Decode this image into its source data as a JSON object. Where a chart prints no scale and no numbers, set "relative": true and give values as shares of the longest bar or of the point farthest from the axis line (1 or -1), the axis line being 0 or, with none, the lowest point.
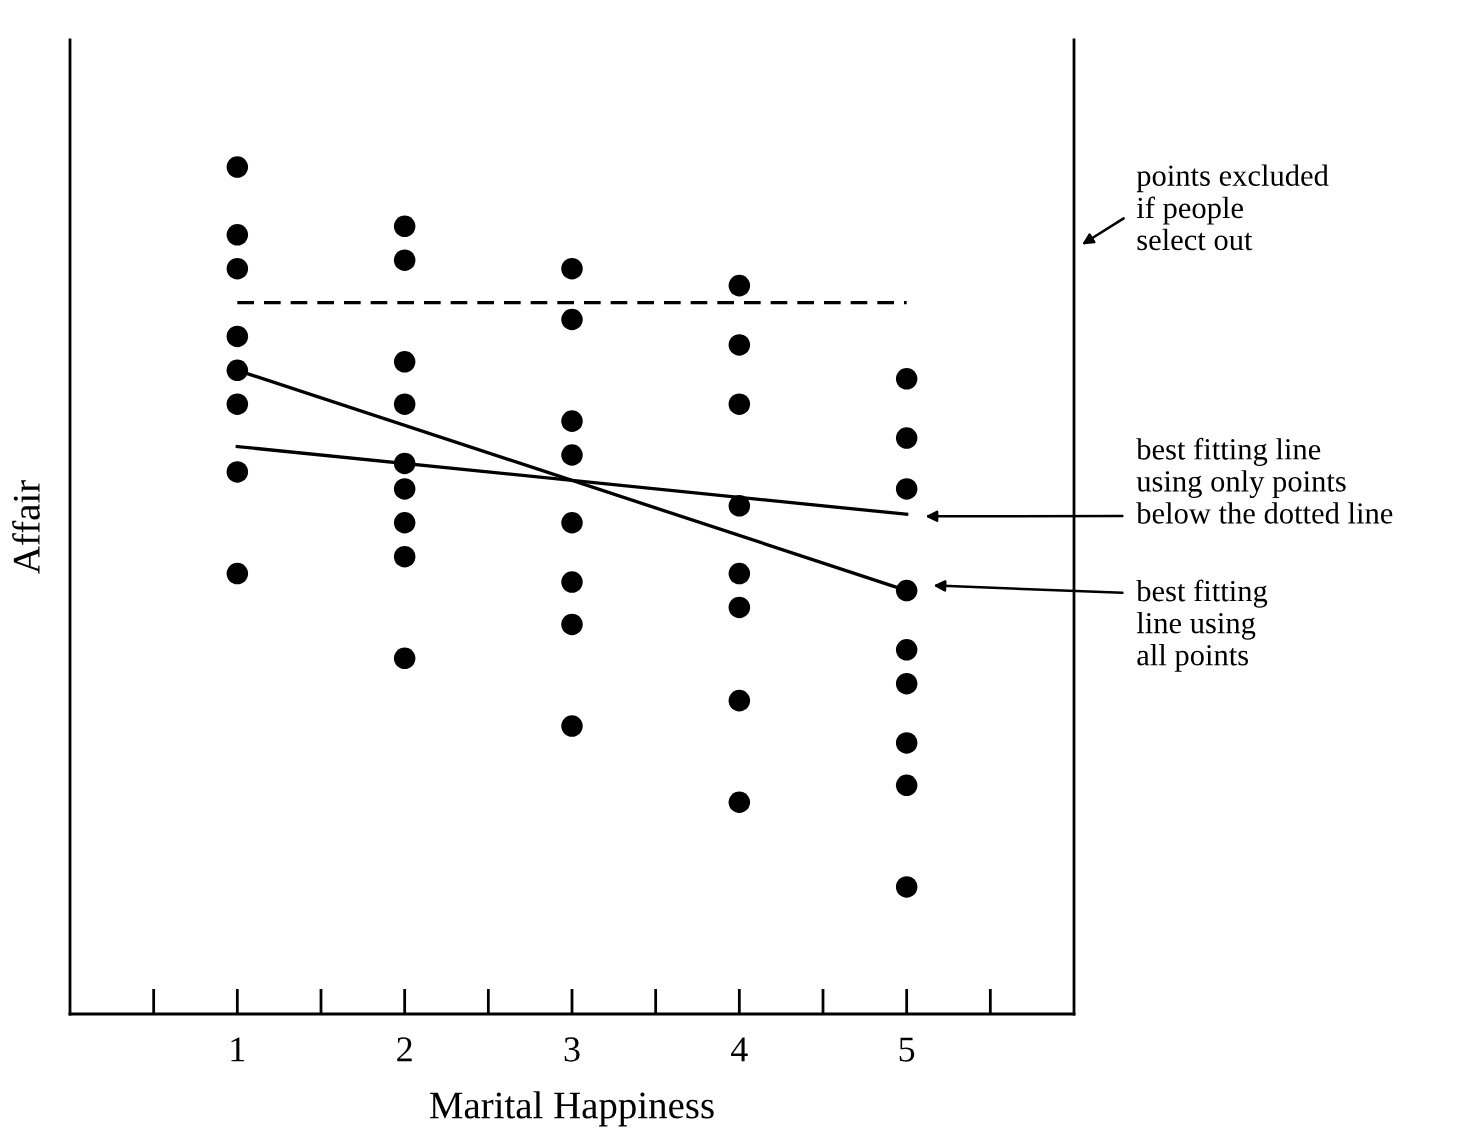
{
  "chart_data": {
    "type": "scatter",
    "xlabel": "Marital Happiness",
    "ylabel": "Affair",
    "relative": true,
    "marker": "circle",
    "grid": false,
    "tick_labels": "x",
    "xlim": [
      0,
      6
    ],
    "xticks": [
      {
        "value": 0.5,
        "label": null
      },
      1,
      {
        "value": 1.5,
        "label": null
      },
      2,
      {
        "value": 2.5,
        "label": null
      },
      3,
      {
        "value": 3.5,
        "label": null
      },
      4,
      {
        "value": 4.5,
        "label": null
      },
      5,
      {
        "value": 5.5,
        "label": null
      }
    ],
    "series": [
      {
        "color": "#000000",
        "x": [
          1,
          1,
          1,
          1,
          1,
          1,
          1,
          1,
          2,
          2,
          2,
          2,
          2,
          2,
          2,
          2,
          2,
          3,
          3,
          3,
          3,
          3,
          3,
          3,
          3,
          4,
          4,
          4,
          4,
          4,
          4,
          4,
          4,
          5,
          5,
          5,
          5,
          5,
          5,
          5,
          5,
          5
        ],
        "values": [
          1.0,
          0.92,
          0.88,
          0.8,
          0.76,
          0.72,
          0.64,
          0.52,
          0.93,
          0.89,
          0.77,
          0.72,
          0.65,
          0.62,
          0.58,
          0.54,
          0.42,
          0.88,
          0.82,
          0.7,
          0.66,
          0.58,
          0.51,
          0.46,
          0.34,
          0.86,
          0.79,
          0.72,
          0.6,
          0.52,
          0.48,
          0.37,
          0.25,
          0.75,
          0.68,
          0.62,
          0.5,
          0.43,
          0.39,
          0.32,
          0.27,
          0.15
        ]
      },
      {
        "type": "line",
        "color": "#000000",
        "line_style": "dashed",
        "marker": "none",
        "x": [
          1,
          5
        ],
        "values": [
          0.84,
          0.84
        ]
      },
      {
        "type": "line",
        "color": "#000000",
        "line_style": "solid",
        "marker": "none",
        "x": [
          1,
          5
        ],
        "values": [
          0.67,
          0.59
        ]
      },
      {
        "type": "line",
        "color": "#000000",
        "line_style": "solid",
        "marker": "none",
        "x": [
          1,
          5
        ],
        "values": [
          0.76,
          0.5
        ]
      }
    ],
    "annotations": [
      "points excluded\nif people\nselect out",
      "best fitting line\nusing only points\nbelow the dotted line",
      "best fitting\nline using\nall points"
    ]
  }
}
